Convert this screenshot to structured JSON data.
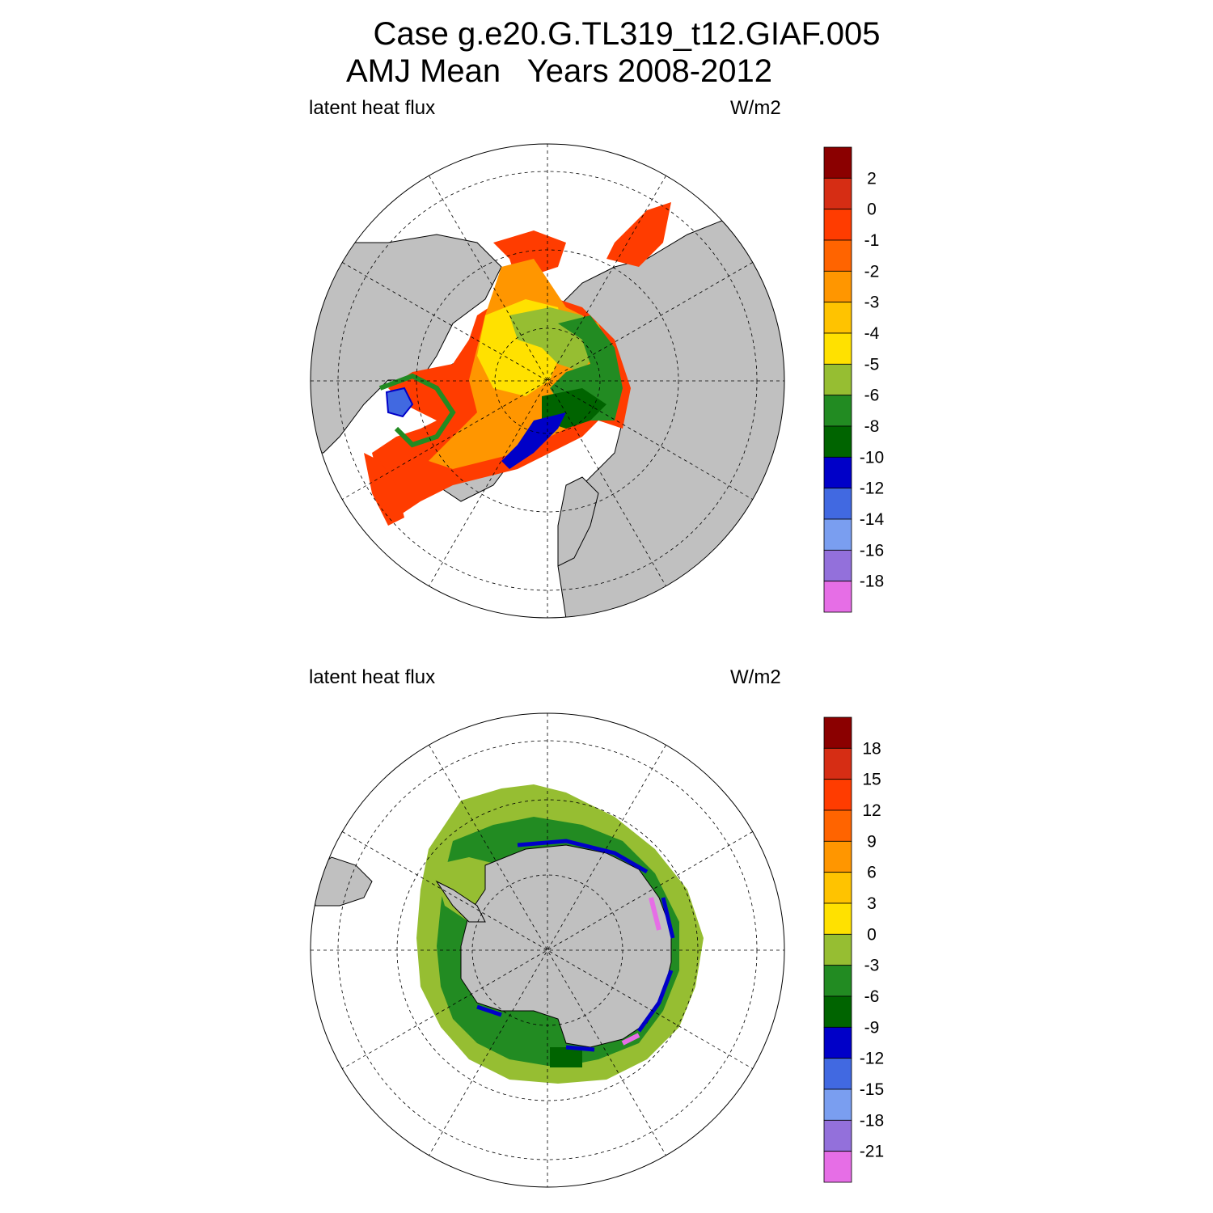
{
  "title_line1": "Case g.e20.G.TL319_t12.GIAF.005",
  "title_line2": "AMJ Mean   Years 2008-2012",
  "chart_data": [
    {
      "type": "heatmap",
      "projection": "north-polar-stereographic",
      "variable_label": "latent heat flux",
      "units_label": "W/m2",
      "colorbar_labels": [
        "2",
        "0",
        "-1",
        "-2",
        "-3",
        "-4",
        "-5",
        "-6",
        "-8",
        "-10",
        "-12",
        "-14",
        "-16",
        "-18"
      ],
      "colors": [
        "#8b0000",
        "#d62d14",
        "#ff3c00",
        "#ff6400",
        "#ff9600",
        "#ffc300",
        "#ffe100",
        "#96be32",
        "#228b22",
        "#006400",
        "#0000c8",
        "#4169e1",
        "#7a9ef0",
        "#9370db",
        "#e66ee6"
      ]
    },
    {
      "type": "heatmap",
      "projection": "south-polar-stereographic",
      "variable_label": "latent heat flux",
      "units_label": "W/m2",
      "colorbar_labels": [
        "18",
        "15",
        "12",
        "9",
        "6",
        "3",
        "0",
        "-3",
        "-6",
        "-9",
        "-12",
        "-15",
        "-18",
        "-21"
      ],
      "colors": [
        "#8b0000",
        "#d62d14",
        "#ff3c00",
        "#ff6400",
        "#ff9600",
        "#ffc300",
        "#ffe100",
        "#96be32",
        "#228b22",
        "#006400",
        "#0000c8",
        "#4169e1",
        "#7a9ef0",
        "#9370db",
        "#e66ee6"
      ]
    }
  ],
  "colors": {
    "land": "#c0c0c0",
    "ocean": "#ffffff",
    "grid": "#000000"
  }
}
